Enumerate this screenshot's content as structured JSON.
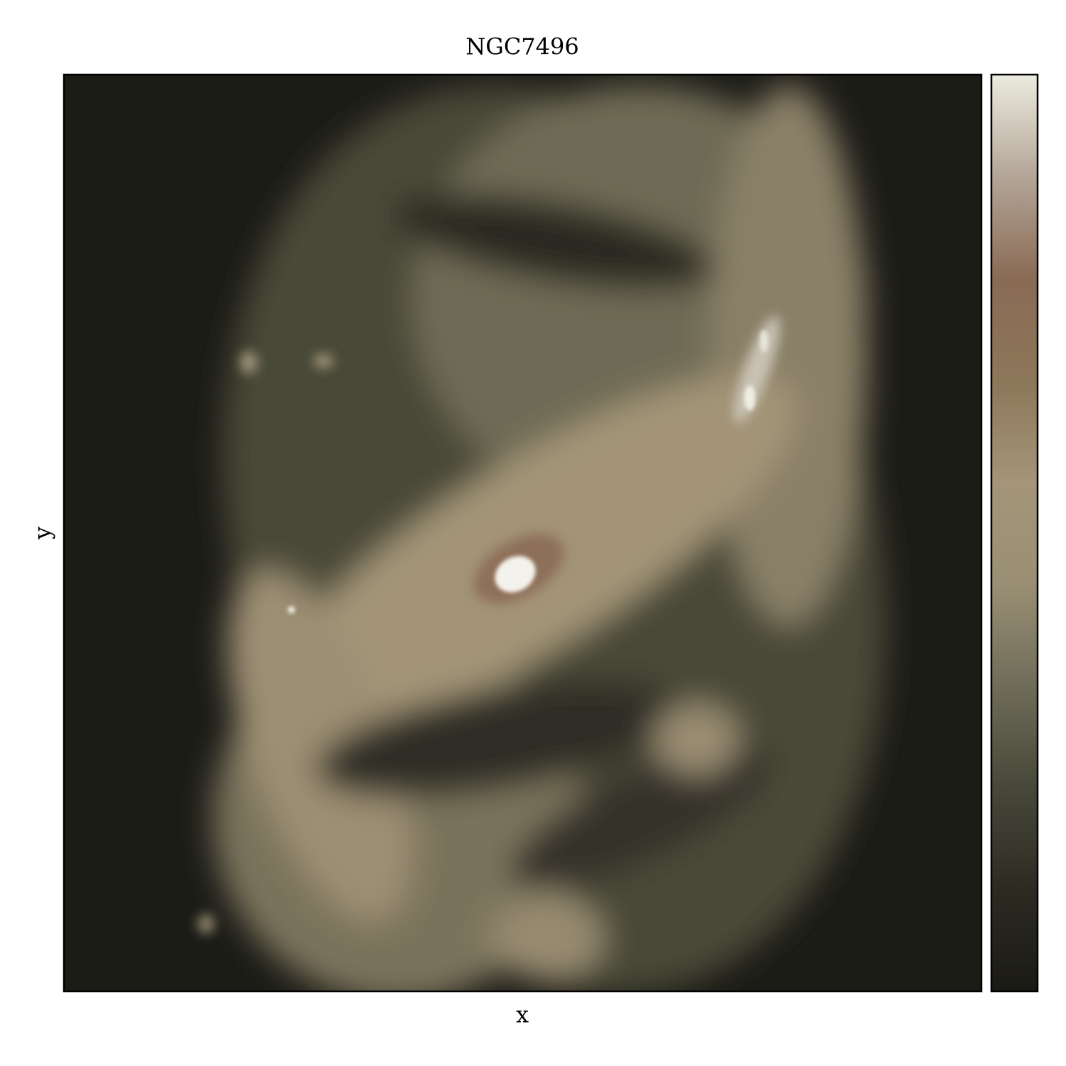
{
  "chart_data": {
    "type": "image",
    "title": "NGC7496",
    "xlabel": "x",
    "ylabel": "y",
    "colormap": [
      "#1a1a14",
      "#2c2b22",
      "#47483a",
      "#6f6c58",
      "#9a8f74",
      "#a49578",
      "#8c7658",
      "#8a6b55",
      "#b3a597",
      "#ecebdf"
    ]
  }
}
